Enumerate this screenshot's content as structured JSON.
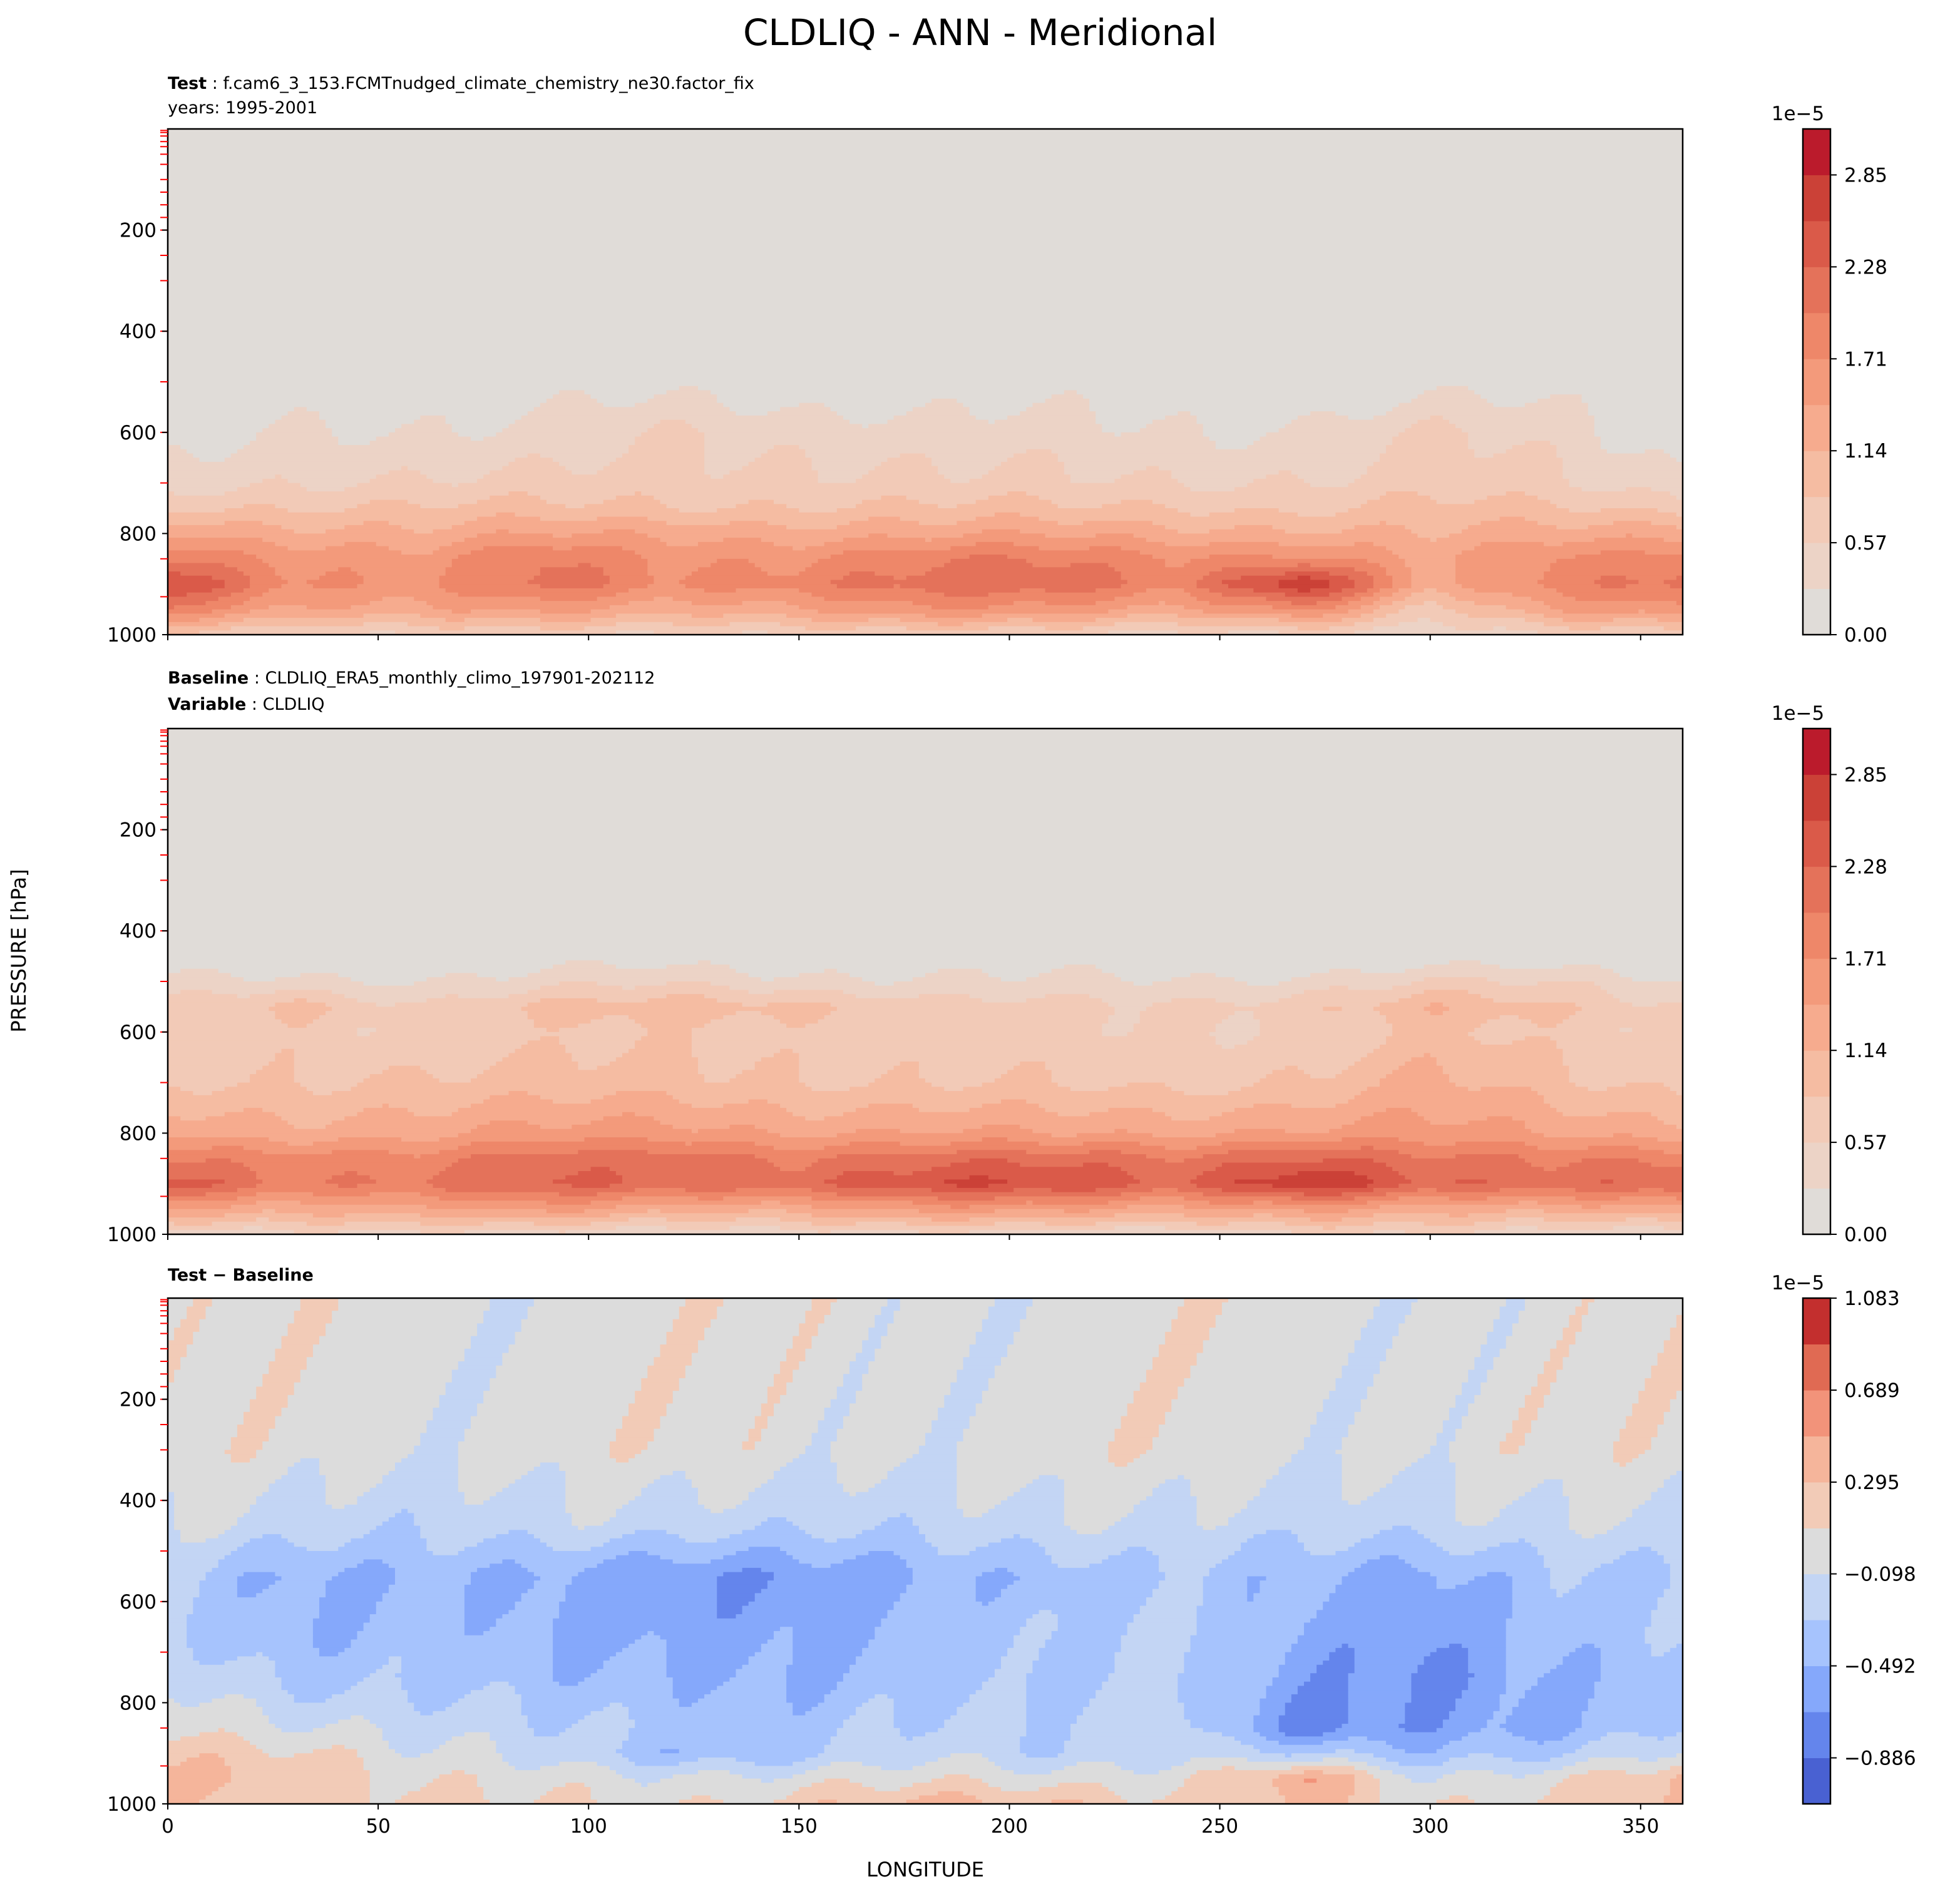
{
  "title": "CLDLIQ - ANN - Meridional",
  "xlabel": "LONGITUDE",
  "ylabel": "PRESSURE [hPa]",
  "panels": [
    {
      "label_bold": "Test",
      "label_text": "f.cam6_3_153.FCMTnudged_climate_chemistry_ne30.factor_fix",
      "line2": "years: 1995-2001"
    },
    {
      "label_bold": "Baseline",
      "label_text": "CLDLIQ_ERA5_monthly_climo_197901-202112",
      "line2_bold": "Variable",
      "line2_text": "CLDLIQ"
    },
    {
      "label_bold": "Test − Baseline"
    }
  ],
  "chart_data": [
    {
      "type": "heatmap",
      "panel": "Test",
      "x": [
        0,
        30,
        60,
        90,
        120,
        150,
        180,
        210,
        240,
        270,
        300,
        330,
        360
      ],
      "y": [
        100,
        300,
        500,
        600,
        700,
        750,
        800,
        850,
        900,
        950,
        1000
      ],
      "values_scale": "1e-5",
      "z": [
        [
          0,
          0,
          0,
          0,
          0,
          0,
          0,
          0,
          0,
          0,
          0,
          0,
          0
        ],
        [
          0,
          0,
          0,
          0,
          0,
          0,
          0,
          0,
          0,
          0,
          0,
          0,
          0
        ],
        [
          0.1,
          0.1,
          0.1,
          0.1,
          0.15,
          0.1,
          0.1,
          0.1,
          0.1,
          0.1,
          0.15,
          0.1,
          0.1
        ],
        [
          0.1,
          0.4,
          0.3,
          0.3,
          0.6,
          0.5,
          0.4,
          0.35,
          0.3,
          0.35,
          0.6,
          0.4,
          0.1
        ],
        [
          0.4,
          0.6,
          0.6,
          0.6,
          0.7,
          0.7,
          0.6,
          0.6,
          0.6,
          0.6,
          0.7,
          0.6,
          0.4
        ],
        [
          0.8,
          0.9,
          0.9,
          0.9,
          0.9,
          0.9,
          0.9,
          0.9,
          0.9,
          0.8,
          0.9,
          0.9,
          0.8
        ],
        [
          1.4,
          1.3,
          1.2,
          1.4,
          1.4,
          1.3,
          1.3,
          1.4,
          1.3,
          1.2,
          1.1,
          1.3,
          1.4
        ],
        [
          2.0,
          1.7,
          1.5,
          2.0,
          1.7,
          1.7,
          1.9,
          2.0,
          1.8,
          1.8,
          1.3,
          1.8,
          1.9
        ],
        [
          2.7,
          1.8,
          1.6,
          2.1,
          1.8,
          1.9,
          2.1,
          2.2,
          1.9,
          2.95,
          1.2,
          1.9,
          2.2
        ],
        [
          2.0,
          1.4,
          1.3,
          1.5,
          1.3,
          1.4,
          1.6,
          1.6,
          1.4,
          1.8,
          0.6,
          1.5,
          1.7
        ],
        [
          0.8,
          0.6,
          0.5,
          0.6,
          0.6,
          0.6,
          0.6,
          0.6,
          0.5,
          0.5,
          0.3,
          0.6,
          0.7
        ]
      ],
      "levels": [
        0,
        0.285,
        0.57,
        0.855,
        1.14,
        1.425,
        1.71,
        1.995,
        2.28,
        2.565,
        2.85,
        3.135
      ],
      "colors": [
        "#e0dcd8",
        "#ecd3c6",
        "#f2cab7",
        "#f5bca2",
        "#f6ab8e",
        "#f39a7b",
        "#ee8769",
        "#e4725a",
        "#da5a49",
        "#cb4137",
        "#bb1b2c"
      ],
      "colorbar_label": "1e−5",
      "colorbar_ticks": [
        "0.00",
        "0.57",
        "1.14",
        "1.71",
        "2.28",
        "2.85"
      ],
      "xlim": [
        0,
        360
      ],
      "ylim": [
        1000,
        0
      ],
      "xticks": [
        "0",
        "50",
        "100",
        "150",
        "200",
        "250",
        "300",
        "350"
      ],
      "yticks": [
        "200",
        "400",
        "600",
        "800",
        "1000"
      ]
    },
    {
      "type": "heatmap",
      "panel": "Baseline",
      "x": [
        0,
        30,
        60,
        90,
        120,
        150,
        180,
        210,
        240,
        270,
        300,
        330,
        360
      ],
      "y": [
        100,
        300,
        450,
        500,
        550,
        600,
        700,
        800,
        850,
        900,
        950,
        1000
      ],
      "values_scale": "1e-5",
      "z": [
        [
          0,
          0,
          0,
          0,
          0,
          0,
          0,
          0,
          0,
          0,
          0,
          0,
          0
        ],
        [
          0,
          0,
          0,
          0,
          0,
          0,
          0,
          0,
          0,
          0,
          0,
          0,
          0
        ],
        [
          0,
          0,
          0,
          0.1,
          0.1,
          0.1,
          0.1,
          0.1,
          0,
          0,
          0.1,
          0,
          0
        ],
        [
          0.3,
          0.4,
          0.3,
          0.4,
          0.5,
          0.4,
          0.35,
          0.3,
          0.3,
          0.4,
          0.6,
          0.5,
          0.3
        ],
        [
          0.6,
          1.0,
          0.6,
          0.9,
          1.0,
          1.0,
          0.7,
          0.6,
          0.6,
          0.8,
          1.1,
          0.8,
          0.6
        ],
        [
          0.6,
          0.8,
          0.6,
          0.7,
          0.8,
          0.8,
          0.7,
          0.6,
          0.6,
          0.7,
          0.9,
          0.7,
          0.6
        ],
        [
          0.8,
          0.9,
          0.9,
          0.9,
          1.0,
          0.9,
          0.8,
          0.8,
          0.8,
          0.9,
          1.2,
          0.9,
          0.8
        ],
        [
          1.4,
          1.3,
          1.3,
          1.5,
          1.6,
          1.4,
          1.4,
          1.4,
          1.4,
          1.5,
          1.5,
          1.4,
          1.3
        ],
        [
          2.0,
          1.9,
          1.8,
          2.1,
          2.2,
          2.0,
          2.1,
          2.2,
          2.1,
          2.3,
          2.0,
          2.0,
          2.0
        ],
        [
          2.5,
          2.0,
          2.0,
          2.3,
          2.3,
          2.2,
          2.5,
          2.6,
          2.3,
          2.9,
          2.2,
          2.2,
          2.4
        ],
        [
          1.5,
          1.3,
          1.3,
          1.5,
          1.3,
          1.3,
          1.5,
          1.5,
          1.4,
          1.5,
          1.2,
          1.3,
          1.4
        ],
        [
          0.4,
          0.5,
          0.4,
          0.4,
          0.4,
          0.4,
          0.4,
          0.4,
          0.4,
          0.5,
          0.5,
          0.4,
          0.4
        ]
      ],
      "levels": [
        0,
        0.285,
        0.57,
        0.855,
        1.14,
        1.425,
        1.71,
        1.995,
        2.28,
        2.565,
        2.85,
        3.135
      ],
      "colors": [
        "#e0dcd8",
        "#ecd3c6",
        "#f2cab7",
        "#f5bca2",
        "#f6ab8e",
        "#f39a7b",
        "#ee8769",
        "#e4725a",
        "#da5a49",
        "#cb4137",
        "#bb1b2c"
      ],
      "colorbar_label": "1e−5",
      "colorbar_ticks": [
        "0.00",
        "0.57",
        "1.14",
        "1.71",
        "2.28",
        "2.85"
      ],
      "xlim": [
        0,
        360
      ],
      "ylim": [
        1000,
        0
      ],
      "xticks": [
        "0",
        "50",
        "100",
        "150",
        "200",
        "250",
        "300",
        "350"
      ],
      "yticks": [
        "200",
        "400",
        "600",
        "800",
        "1000"
      ]
    },
    {
      "type": "heatmap",
      "panel": "Test − Baseline",
      "x": [
        0,
        30,
        60,
        90,
        120,
        150,
        180,
        210,
        240,
        270,
        300,
        330,
        360
      ],
      "y": [
        100,
        300,
        450,
        550,
        650,
        750,
        850,
        900,
        950,
        1000
      ],
      "values_scale": "1e-5",
      "z": [
        [
          0,
          0,
          0,
          0,
          0,
          0,
          0,
          0,
          0,
          0,
          0,
          0,
          0
        ],
        [
          0,
          0,
          0,
          0,
          0,
          0,
          0,
          0,
          0,
          0,
          0,
          0,
          0
        ],
        [
          -0.15,
          -0.15,
          -0.2,
          -0.2,
          -0.25,
          -0.2,
          -0.2,
          -0.2,
          -0.15,
          -0.15,
          -0.2,
          -0.2,
          -0.1
        ],
        [
          -0.3,
          -0.5,
          -0.4,
          -0.6,
          -0.7,
          -0.6,
          -0.5,
          -0.5,
          -0.3,
          -0.4,
          -0.6,
          -0.4,
          -0.3
        ],
        [
          -0.3,
          -0.45,
          -0.35,
          -0.6,
          -0.6,
          -0.5,
          -0.45,
          -0.4,
          -0.2,
          -0.5,
          -0.7,
          -0.45,
          -0.25
        ],
        [
          -0.1,
          -0.3,
          -0.35,
          -0.5,
          -0.45,
          -0.45,
          -0.4,
          -0.4,
          -0.2,
          -0.6,
          -0.8,
          -0.5,
          -0.3
        ],
        [
          0.1,
          0.0,
          -0.2,
          -0.3,
          -0.3,
          -0.35,
          -0.3,
          -0.3,
          -0.1,
          -0.8,
          -0.7,
          -0.5,
          -0.2
        ],
        [
          0.3,
          0.2,
          -0.1,
          -0.2,
          -0.4,
          -0.35,
          -0.2,
          -0.3,
          -0.1,
          -0.3,
          -0.5,
          -0.3,
          0.0
        ],
        [
          0.4,
          0.3,
          0.0,
          0.0,
          0.0,
          0.0,
          0.0,
          0.0,
          0.1,
          0.5,
          -0.2,
          0.1,
          0.4
        ],
        [
          0.3,
          0.2,
          0.1,
          0.1,
          0.1,
          0.2,
          0.3,
          0.3,
          0.2,
          0.3,
          0.0,
          0.2,
          0.4
        ]
      ],
      "levels": [
        -1.083,
        -0.886,
        -0.689,
        -0.492,
        -0.295,
        -0.098,
        0.098,
        0.295,
        0.492,
        0.689,
        0.886,
        1.083
      ],
      "colors": [
        "#4961d2",
        "#6485ec",
        "#85a8fb",
        "#a6c3fd",
        "#c3d5f4",
        "#dcdcdc",
        "#f2cbb7",
        "#f5b59b",
        "#f2937a",
        "#e06a53",
        "#c32f2e"
      ],
      "colorbar_label": "1e−5",
      "colorbar_ticks": [
        "−0.886",
        "−0.492",
        "−0.098",
        "0.295",
        "0.689",
        "1.083"
      ],
      "xlim": [
        0,
        360
      ],
      "ylim": [
        1000,
        0
      ],
      "xticks": [
        "0",
        "50",
        "100",
        "150",
        "200",
        "250",
        "300",
        "350"
      ],
      "yticks": [
        "200",
        "400",
        "600",
        "800",
        "1000"
      ]
    }
  ],
  "level_marks_hPa": [
    3,
    7,
    14,
    25,
    35,
    50,
    70,
    100,
    125,
    150,
    175,
    200,
    250,
    300,
    400,
    500,
    600,
    700,
    850,
    925
  ]
}
